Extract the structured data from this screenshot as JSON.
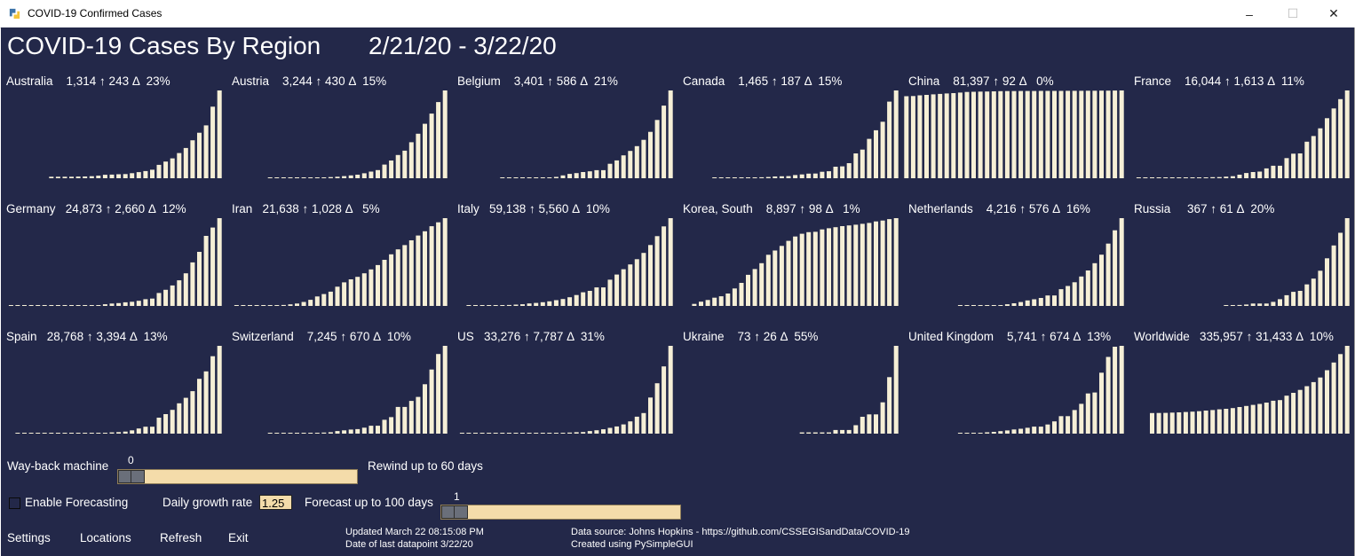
{
  "window": {
    "title": "COVID-19 Confirmed Cases",
    "minimize": "–",
    "maximize": "☐",
    "close": "✕"
  },
  "colors": {
    "background": "#232849",
    "bars": "#f6efd6",
    "slider": "#f4dcaa"
  },
  "header": {
    "title": "COVID-19 Cases By Region",
    "date_range": "2/21/20 - 3/22/20"
  },
  "regions": [
    {
      "label": "Australia    1,314 ↑ 243 Δ  23%"
    },
    {
      "label": "Austria    3,244 ↑ 430 Δ  15%"
    },
    {
      "label": "Belgium    3,401 ↑ 586 Δ  21%"
    },
    {
      "label": "Canada    1,465 ↑ 187 Δ  15%"
    },
    {
      "label": "China    81,397 ↑ 92 Δ   0%"
    },
    {
      "label": "France    16,044 ↑ 1,613 Δ  11%"
    },
    {
      "label": "Germany   24,873 ↑ 2,660 Δ  12%"
    },
    {
      "label": "Iran   21,638 ↑ 1,028 Δ   5%"
    },
    {
      "label": "Italy   59,138 ↑ 5,560 Δ  10%"
    },
    {
      "label": "Korea, South    8,897 ↑ 98 Δ   1%"
    },
    {
      "label": "Netherlands    4,216 ↑ 576 Δ  16%"
    },
    {
      "label": "Russia     367 ↑ 61 Δ  20%"
    },
    {
      "label": "Spain   28,768 ↑ 3,394 Δ  13%"
    },
    {
      "label": "Switzerland    7,245 ↑ 670 Δ  10%"
    },
    {
      "label": "US   33,276 ↑ 7,787 Δ  31%"
    },
    {
      "label": "Ukraine    73 ↑ 26 Δ  55%"
    },
    {
      "label": "United Kingdom    5,741 ↑ 674 Δ  13%"
    },
    {
      "label": "Worldwide   335,957 ↑ 31,433 Δ  10%"
    }
  ],
  "chart_data": [
    {
      "type": "bar",
      "region": "Australia",
      "values": [
        22,
        22,
        23,
        23,
        25,
        27,
        30,
        39,
        52,
        55,
        60,
        63,
        76,
        91,
        107,
        128,
        200,
        250,
        297,
        377,
        452,
        568,
        681,
        791,
        1071,
        1314
      ]
    },
    {
      "type": "bar",
      "region": "Austria",
      "values": [
        2,
        2,
        3,
        5,
        9,
        14,
        18,
        21,
        29,
        41,
        55,
        79,
        104,
        131,
        182,
        246,
        302,
        504,
        655,
        860,
        1018,
        1332,
        1646,
        2013,
        2388,
        2814,
        3244
      ]
    },
    {
      "type": "bar",
      "region": "Belgium",
      "values": [
        1,
        1,
        1,
        1,
        2,
        8,
        13,
        23,
        50,
        109,
        169,
        200,
        239,
        267,
        314,
        314,
        559,
        689,
        886,
        1058,
        1243,
        1486,
        1795,
        2257,
        2815,
        3401
      ]
    },
    {
      "type": "bar",
      "region": "Canada",
      "values": [
        9,
        11,
        11,
        12,
        13,
        14,
        15,
        16,
        21,
        30,
        33,
        36,
        54,
        64,
        77,
        79,
        108,
        117,
        193,
        198,
        252,
        415,
        478,
        657,
        800,
        943,
        1278,
        1465
      ]
    },
    {
      "type": "bar",
      "region": "China",
      "values": [
        76077,
        76212,
        76841,
        77262,
        77779,
        78190,
        78630,
        78959,
        79389,
        79968,
        80174,
        80304,
        80422,
        80565,
        80710,
        80813,
        80859,
        80879,
        80908,
        80932,
        80954,
        80973,
        80995,
        81020,
        81063,
        81086,
        81103,
        81135,
        81167,
        81200,
        81250,
        81305,
        81397
      ]
    },
    {
      "type": "bar",
      "region": "France",
      "values": [
        12,
        12,
        12,
        12,
        12,
        14,
        18,
        38,
        57,
        100,
        130,
        191,
        204,
        288,
        380,
        656,
        959,
        1136,
        1219,
        1794,
        2293,
        2293,
        3681,
        4496,
        4532,
        6683,
        7715,
        9124,
        10970,
        12758,
        14463,
        16044
      ]
    },
    {
      "type": "bar",
      "region": "Germany",
      "values": [
        16,
        16,
        16,
        16,
        16,
        16,
        18,
        26,
        48,
        79,
        130,
        159,
        196,
        262,
        482,
        670,
        799,
        1040,
        1176,
        1457,
        1908,
        2078,
        3675,
        4585,
        5795,
        7272,
        9257,
        12327,
        15320,
        19848,
        22213,
        24873
      ]
    },
    {
      "type": "bar",
      "region": "Iran",
      "values": [
        5,
        18,
        28,
        43,
        61,
        95,
        139,
        245,
        388,
        593,
        978,
        1501,
        2336,
        2922,
        3513,
        4747,
        5823,
        6566,
        7161,
        8042,
        9000,
        10075,
        11364,
        12729,
        13938,
        14991,
        16169,
        17361,
        18407,
        19644,
        20610,
        21638
      ]
    },
    {
      "type": "bar",
      "region": "Italy",
      "values": [
        20,
        62,
        155,
        229,
        322,
        453,
        655,
        888,
        1128,
        1694,
        2036,
        2502,
        3089,
        3858,
        4636,
        5883,
        7375,
        9172,
        10149,
        12462,
        12462,
        17660,
        21157,
        24747,
        27980,
        31506,
        35713,
        41035,
        47021,
        53578,
        59138
      ]
    },
    {
      "type": "bar",
      "region": "Korea, South",
      "values": [
        204,
        433,
        602,
        833,
        977,
        1261,
        1766,
        2337,
        3150,
        3736,
        4335,
        5186,
        5621,
        6088,
        6593,
        7041,
        7314,
        7478,
        7513,
        7755,
        7869,
        7979,
        8086,
        8162,
        8236,
        8320,
        8413,
        8565,
        8652,
        8799,
        8897
      ]
    },
    {
      "type": "bar",
      "region": "Netherlands",
      "values": [
        1,
        1,
        6,
        10,
        18,
        24,
        38,
        82,
        128,
        188,
        265,
        321,
        382,
        503,
        503,
        804,
        959,
        1135,
        1413,
        1705,
        2051,
        2460,
        2994,
        3631,
        4216
      ]
    },
    {
      "type": "bar",
      "region": "Russia",
      "values": [
        3,
        3,
        4,
        6,
        10,
        10,
        10,
        17,
        28,
        45,
        59,
        63,
        90,
        114,
        147,
        199,
        253,
        306,
        367
      ]
    },
    {
      "type": "bar",
      "region": "Spain",
      "values": [
        2,
        2,
        2,
        2,
        6,
        13,
        15,
        32,
        45,
        84,
        120,
        165,
        222,
        259,
        400,
        500,
        673,
        1073,
        1695,
        2277,
        2277,
        5232,
        6391,
        7798,
        9942,
        11748,
        13910,
        17963,
        20410,
        25374,
        28768
      ]
    },
    {
      "type": "bar",
      "region": "Switzerland",
      "values": [
        1,
        1,
        8,
        8,
        18,
        27,
        42,
        56,
        90,
        114,
        214,
        268,
        337,
        374,
        491,
        652,
        652,
        1139,
        1359,
        2200,
        2200,
        2700,
        3028,
        4075,
        5294,
        6575,
        7245
      ]
    },
    {
      "type": "bar",
      "region": "US",
      "values": [
        25,
        35,
        35,
        35,
        53,
        53,
        59,
        60,
        62,
        70,
        76,
        101,
        122,
        153,
        221,
        278,
        417,
        537,
        605,
        959,
        1281,
        1663,
        2179,
        2726,
        3499,
        4632,
        6421,
        7786,
        13680,
        19101,
        25489,
        33276
      ]
    },
    {
      "type": "bar",
      "region": "Ukraine",
      "values": [
        1,
        1,
        1,
        1,
        1,
        3,
        3,
        3,
        7,
        14,
        16,
        16,
        26,
        47,
        73
      ]
    },
    {
      "type": "bar",
      "region": "United Kingdom",
      "values": [
        23,
        35,
        40,
        51,
        85,
        115,
        163,
        206,
        273,
        321,
        382,
        456,
        460,
        596,
        798,
        1140,
        1140,
        1543,
        1950,
        2626,
        2689,
        3983,
        5018,
        5683,
        5741
      ]
    },
    {
      "type": "bar",
      "region": "Worldwide",
      "values": [
        78572,
        78958,
        79561,
        80406,
        81388,
        82746,
        84112,
        86011,
        88369,
        90306,
        92840,
        95120,
        97886,
        101801,
        105847,
        109821,
        113590,
        118620,
        125875,
        128352,
        145205,
        156101,
        167454,
        181574,
        197102,
        214821,
        242570,
        272208,
        304507,
        335957
      ]
    }
  ],
  "controls": {
    "wayback_label": "Way-back machine",
    "wayback_value": "0",
    "wayback_hint": "Rewind up to 60 days",
    "forecast_label": "Enable Forecasting",
    "growth_label": "Daily growth rate",
    "growth_value": "1.25",
    "forecast_hint": "Forecast up to 100 days",
    "forecast_value": "1"
  },
  "footer": {
    "settings": "Settings",
    "locations": "Locations",
    "refresh": "Refresh",
    "exit": "Exit",
    "updated": "Updated March 22 08:15:08 PM",
    "last_datapoint": "Date of last datapoint 3/22/20",
    "source": "Data source: Johns Hopkins - https://github.com/CSSEGISandData/COVID-19",
    "created": "Created using PySimpleGUI"
  }
}
